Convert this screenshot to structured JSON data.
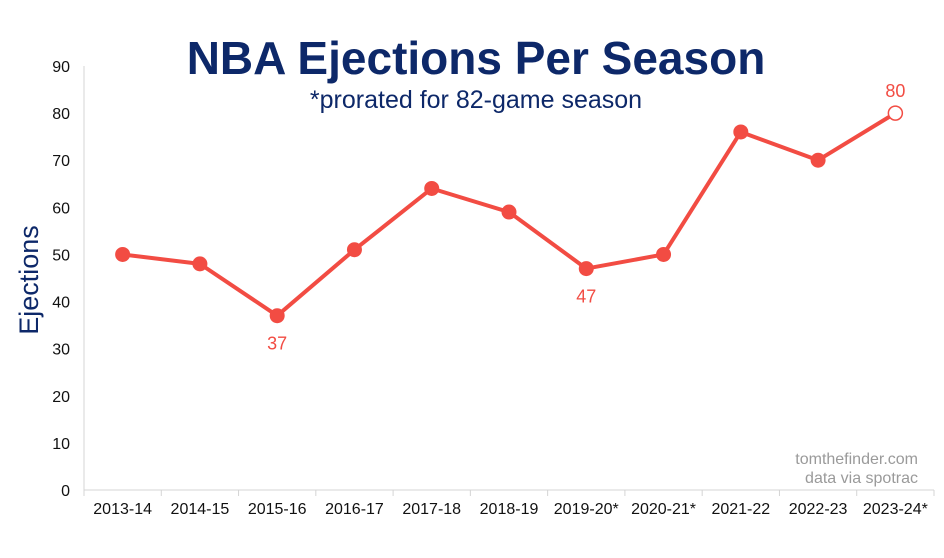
{
  "chart_data": {
    "type": "line",
    "title": "NBA Ejections Per Season",
    "subtitle": "*prorated for 82-game season",
    "xlabel": "",
    "ylabel": "Ejections",
    "ylim": [
      0,
      90
    ],
    "yticks": [
      0,
      10,
      20,
      30,
      40,
      50,
      60,
      70,
      80,
      90
    ],
    "grid": false,
    "categories": [
      "2013-14",
      "2014-15",
      "2015-16",
      "2016-17",
      "2017-18",
      "2018-19",
      "2019-20*",
      "2020-21*",
      "2021-22",
      "2022-23",
      "2023-24*"
    ],
    "series": [
      {
        "name": "Ejections",
        "color": "#f24c43",
        "values": [
          50,
          48,
          37,
          51,
          64,
          59,
          47,
          50,
          76,
          70,
          80
        ]
      }
    ],
    "hollow_points": [
      "2023-24*"
    ],
    "data_labels": [
      {
        "category": "2015-16",
        "value": 37,
        "text": "37",
        "position": "below"
      },
      {
        "category": "2019-20*",
        "value": 47,
        "text": "47",
        "position": "below"
      },
      {
        "category": "2023-24*",
        "value": 80,
        "text": "80",
        "position": "above"
      }
    ],
    "credits": [
      "tomthefinder.com",
      "data via spotrac"
    ]
  }
}
